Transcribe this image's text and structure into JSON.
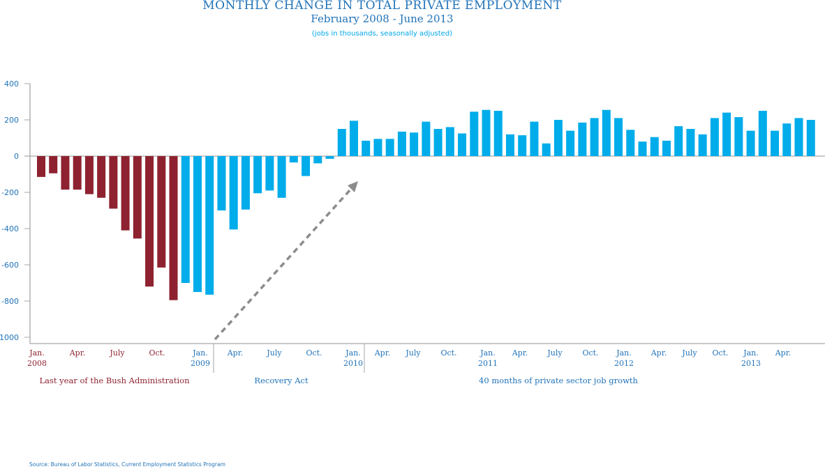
{
  "title": "MONTHLY CHANGE IN TOTAL PRIVATE EMPLOYMENT",
  "subtitle": "February 2008 - June 2013",
  "note": "(jobs in thousands, seasonally adjusted)",
  "source": "Source: Bureau of Labor Statistics, Current Employment Statistics Program",
  "colors": {
    "bush": "#8e2230",
    "obama": "#00acea",
    "text_blue": "#1f72b8",
    "axis": "#a6a6a6",
    "arrow": "#8c8c8c"
  },
  "chart_data": {
    "type": "bar",
    "title": "MONTHLY CHANGE IN TOTAL PRIVATE EMPLOYMENT",
    "ylim": [
      -1000,
      400
    ],
    "yticks": [
      400,
      200,
      0,
      -200,
      -400,
      -600,
      -800,
      -1000
    ],
    "grid": false,
    "x_tick_labels": [
      {
        "label": "Jan.",
        "year": "2008",
        "group": "bush"
      },
      {
        "label": "Apr.",
        "year": "",
        "group": "bush"
      },
      {
        "label": "July",
        "year": "",
        "group": "bush"
      },
      {
        "label": "Oct.",
        "year": "",
        "group": "bush"
      },
      {
        "label": "Jan.",
        "year": "2009",
        "group": "obama"
      },
      {
        "label": "Apr.",
        "year": "",
        "group": "obama"
      },
      {
        "label": "July",
        "year": "",
        "group": "obama"
      },
      {
        "label": "Oct.",
        "year": "",
        "group": "obama"
      },
      {
        "label": "Jan.",
        "year": "2010",
        "group": "obama"
      },
      {
        "label": "Apr.",
        "year": "",
        "group": "obama"
      },
      {
        "label": "July",
        "year": "",
        "group": "obama"
      },
      {
        "label": "Oct.",
        "year": "",
        "group": "obama"
      },
      {
        "label": "Jan.",
        "year": "2011",
        "group": "obama"
      },
      {
        "label": "Apr.",
        "year": "",
        "group": "obama"
      },
      {
        "label": "July",
        "year": "",
        "group": "obama"
      },
      {
        "label": "Oct.",
        "year": "",
        "group": "obama"
      },
      {
        "label": "Jan.",
        "year": "2012",
        "group": "obama"
      },
      {
        "label": "Apr.",
        "year": "",
        "group": "obama"
      },
      {
        "label": "July",
        "year": "",
        "group": "obama"
      },
      {
        "label": "Oct.",
        "year": "",
        "group": "obama"
      },
      {
        "label": "Jan.",
        "year": "2013",
        "group": "obama"
      },
      {
        "label": "Apr.",
        "year": "",
        "group": "obama"
      }
    ],
    "periods": [
      {
        "label": "Last year of the Bush Administration",
        "group": "bush"
      },
      {
        "label": "Recovery Act",
        "group": "obama"
      },
      {
        "label": "40 months of private sector job growth",
        "group": "obama"
      }
    ],
    "series": [
      {
        "group": "bush",
        "values": [
          -115,
          -95,
          -185,
          -185,
          -210,
          -230,
          -290,
          -410,
          -455,
          -720,
          -615,
          -795
        ]
      },
      {
        "group": "obama",
        "values": [
          -700,
          -750,
          -765,
          -300,
          -405,
          -295,
          -205,
          -190,
          -230,
          -35,
          -110,
          -40,
          -15,
          150,
          195,
          85,
          95,
          95,
          135,
          130,
          190,
          150,
          160,
          125,
          245,
          255,
          250,
          120,
          115,
          190,
          70,
          200,
          140,
          185,
          210,
          255,
          210,
          145,
          80,
          105,
          85,
          165,
          150,
          120,
          210,
          240,
          215,
          140,
          250,
          140,
          180,
          210,
          200
        ]
      }
    ]
  }
}
